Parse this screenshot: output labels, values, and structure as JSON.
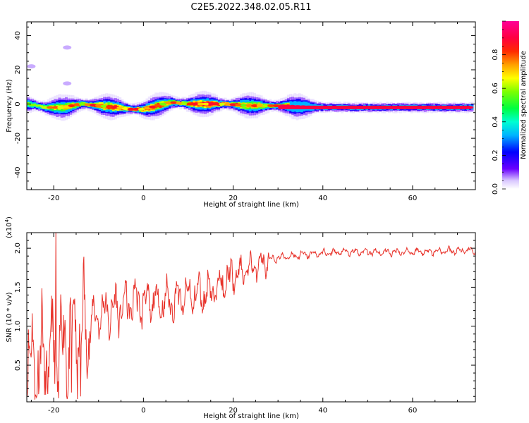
{
  "title": "C2E5.2022.348.02.05.R11",
  "colors": {
    "snr_line": "#e8332b",
    "axis": "#000000",
    "background": "#ffffff"
  },
  "chart_data": [
    {
      "type": "heatmap",
      "xlabel": "Height of straight line (km)",
      "ylabel": "Frequency (Hz)",
      "xlim": [
        -26,
        74
      ],
      "ylim": [
        -50,
        48
      ],
      "x_ticks": [
        "-20",
        "0",
        "20",
        "40",
        "60"
      ],
      "y_ticks": [
        "40",
        "20",
        "0",
        "-20",
        "-40"
      ],
      "colorbar": {
        "label": "Normalized spectral amplitude",
        "range": [
          0,
          1
        ],
        "ticks": [
          "0.0",
          "0.2",
          "0.4",
          "0.6",
          "0.8"
        ]
      },
      "ridge": {
        "description_points": [
          [
            -26,
            0
          ],
          [
            -22,
            -2
          ],
          [
            -18,
            -2
          ],
          [
            -14,
            0
          ],
          [
            -10,
            -1
          ],
          [
            -6,
            -2
          ],
          [
            -3,
            -3
          ],
          [
            0,
            -3
          ],
          [
            3,
            -1
          ],
          [
            6,
            1
          ],
          [
            10,
            0
          ],
          [
            14,
            0
          ],
          [
            18,
            0
          ],
          [
            24,
            -1
          ],
          [
            30,
            -1
          ],
          [
            40,
            -2
          ],
          [
            50,
            -2
          ],
          [
            60,
            -2
          ],
          [
            73,
            -2
          ]
        ],
        "amplitude": [
          0.55,
          0.6,
          0.7,
          0.75,
          0.8,
          0.8,
          0.85,
          0.85,
          0.8,
          0.7,
          0.8,
          0.9,
          0.85,
          0.7,
          0.75,
          0.85,
          0.9,
          0.95,
          0.95
        ]
      },
      "blobs": [
        [
          -17,
          33
        ],
        [
          -25,
          22
        ],
        [
          -17,
          12
        ]
      ]
    },
    {
      "type": "line",
      "xlabel": "Height of straight line (km)",
      "ylabel": "SNR (10 * v/v)",
      "multiplier_label": "(x10",
      "multiplier_exp": "4",
      "multiplier_close": ")",
      "xlim": [
        -26,
        74
      ],
      "ylim": [
        0.03,
        2.2
      ],
      "x_ticks": [
        "-20",
        "0",
        "20",
        "40",
        "60"
      ],
      "y_ticks": [
        "2.0",
        "1.5",
        "1.0",
        "0.5"
      ],
      "trend": [
        [
          -26,
          0.5
        ],
        [
          -22,
          0.55
        ],
        [
          -18,
          0.75
        ],
        [
          -14,
          0.9
        ],
        [
          -10,
          1.15
        ],
        [
          -6,
          1.22
        ],
        [
          -2,
          1.32
        ],
        [
          2,
          1.3
        ],
        [
          6,
          1.32
        ],
        [
          10,
          1.38
        ],
        [
          14,
          1.43
        ],
        [
          18,
          1.55
        ],
        [
          22,
          1.7
        ],
        [
          26,
          1.8
        ],
        [
          30,
          1.88
        ],
        [
          36,
          1.92
        ],
        [
          44,
          1.95
        ],
        [
          55,
          1.95
        ],
        [
          65,
          1.96
        ],
        [
          74,
          1.97
        ]
      ],
      "peaks": [
        [
          -19.5,
          2.2
        ],
        [
          -14,
          0.1
        ],
        [
          -16,
          0.15
        ],
        [
          -22,
          0.12
        ]
      ]
    }
  ]
}
